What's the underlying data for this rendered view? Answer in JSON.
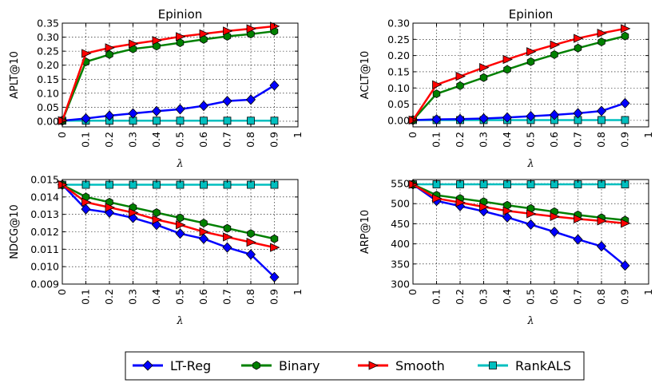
{
  "colors": {
    "lt_reg": "#0000ff",
    "binary": "#008000",
    "smooth": "#ff0000",
    "rankals": "#00bfbf",
    "grid": "#000000"
  },
  "legend": {
    "items": [
      {
        "label": "LT-Reg",
        "marker": "diamond",
        "color": "#0000ff"
      },
      {
        "label": "Binary",
        "marker": "hexagon",
        "color": "#008000"
      },
      {
        "label": "Smooth",
        "marker": "triangle-right",
        "color": "#ff0000"
      },
      {
        "label": "RankALS",
        "marker": "square",
        "color": "#00bfbf"
      }
    ]
  },
  "chart_data": [
    {
      "type": "line",
      "title": "Epinion",
      "xlabel": "λ",
      "ylabel": "APLT@10",
      "x": [
        0,
        0.1,
        0.2,
        0.3,
        0.4,
        0.5,
        0.6,
        0.7,
        0.8,
        0.9
      ],
      "xlim": [
        0,
        1
      ],
      "xticks": [
        "0",
        "0.1",
        "0.2",
        "0.3",
        "0.4",
        "0.5",
        "0.6",
        "0.7",
        "0.8",
        "0.9",
        "1"
      ],
      "ylim": [
        -0.02,
        0.35
      ],
      "yticks": [
        0,
        0.05,
        0.1,
        0.15,
        0.2,
        0.25,
        0.3,
        0.35
      ],
      "yticklabels": [
        "0.00",
        "0.05",
        "0.10",
        "0.15",
        "0.20",
        "0.25",
        "0.30",
        "0.35"
      ],
      "grid": true,
      "series": [
        {
          "name": "LT-Reg",
          "values": [
            0.002,
            0.01,
            0.02,
            0.028,
            0.036,
            0.043,
            0.055,
            0.072,
            0.077,
            0.128
          ]
        },
        {
          "name": "Binary",
          "values": [
            0.002,
            0.212,
            0.238,
            0.258,
            0.268,
            0.28,
            0.292,
            0.303,
            0.311,
            0.321
          ]
        },
        {
          "name": "Smooth",
          "values": [
            0.002,
            0.242,
            0.262,
            0.276,
            0.288,
            0.302,
            0.312,
            0.322,
            0.33,
            0.339
          ]
        },
        {
          "name": "RankALS",
          "values": [
            0.002,
            0.002,
            0.002,
            0.002,
            0.002,
            0.002,
            0.002,
            0.002,
            0.002,
            0.002
          ]
        }
      ]
    },
    {
      "type": "line",
      "title": "Epinion",
      "xlabel": "λ",
      "ylabel": "ACLT@10",
      "x": [
        0,
        0.1,
        0.2,
        0.3,
        0.4,
        0.5,
        0.6,
        0.7,
        0.8,
        0.9
      ],
      "xlim": [
        0,
        1
      ],
      "xticks": [
        "0",
        "0.1",
        "0.2",
        "0.3",
        "0.4",
        "0.5",
        "0.6",
        "0.7",
        "0.8",
        "0.9",
        "1"
      ],
      "ylim": [
        -0.02,
        0.3
      ],
      "yticks": [
        0,
        0.05,
        0.1,
        0.15,
        0.2,
        0.25,
        0.3
      ],
      "yticklabels": [
        "0.00",
        "0.05",
        "0.10",
        "0.15",
        "0.20",
        "0.25",
        "0.30"
      ],
      "grid": true,
      "series": [
        {
          "name": "LT-Reg",
          "values": [
            0.001,
            0.003,
            0.004,
            0.006,
            0.009,
            0.013,
            0.017,
            0.022,
            0.029,
            0.053
          ]
        },
        {
          "name": "Binary",
          "values": [
            0.001,
            0.082,
            0.107,
            0.132,
            0.157,
            0.181,
            0.203,
            0.223,
            0.242,
            0.26
          ]
        },
        {
          "name": "Smooth",
          "values": [
            0.001,
            0.11,
            0.136,
            0.163,
            0.188,
            0.212,
            0.233,
            0.253,
            0.269,
            0.283
          ]
        },
        {
          "name": "RankALS",
          "values": [
            0.001,
            0.001,
            0.001,
            0.001,
            0.001,
            0.001,
            0.001,
            0.001,
            0.001,
            0.001
          ]
        }
      ]
    },
    {
      "type": "line",
      "title": "",
      "xlabel": "λ",
      "ylabel": "NDCG@10",
      "x": [
        0,
        0.1,
        0.2,
        0.3,
        0.4,
        0.5,
        0.6,
        0.7,
        0.8,
        0.9
      ],
      "xlim": [
        0,
        1
      ],
      "xticks": [
        "0",
        "0.1",
        "0.2",
        "0.3",
        "0.4",
        "0.5",
        "0.6",
        "0.7",
        "0.8",
        "0.9",
        "1"
      ],
      "ylim": [
        0.009,
        0.015
      ],
      "yticks": [
        0.009,
        0.01,
        0.011,
        0.012,
        0.013,
        0.014,
        0.015
      ],
      "yticklabels": [
        "0.009",
        "0.010",
        "0.011",
        "0.012",
        "0.013",
        "0.014",
        "0.015"
      ],
      "grid": true,
      "series": [
        {
          "name": "LT-Reg",
          "values": [
            0.0147,
            0.0133,
            0.0131,
            0.0128,
            0.0124,
            0.0119,
            0.0116,
            0.0111,
            0.0107,
            0.0094
          ]
        },
        {
          "name": "Binary",
          "values": [
            0.0147,
            0.014,
            0.0137,
            0.0134,
            0.0131,
            0.0128,
            0.0125,
            0.0122,
            0.0119,
            0.0116
          ]
        },
        {
          "name": "Smooth",
          "values": [
            0.0147,
            0.0137,
            0.0134,
            0.0131,
            0.0127,
            0.0124,
            0.012,
            0.0117,
            0.0114,
            0.0111
          ]
        },
        {
          "name": "RankALS",
          "values": [
            0.0147,
            0.0147,
            0.0147,
            0.0147,
            0.0147,
            0.0147,
            0.0147,
            0.0147,
            0.0147,
            0.0147
          ]
        }
      ]
    },
    {
      "type": "line",
      "title": "",
      "xlabel": "λ",
      "ylabel": "ARP@10",
      "x": [
        0,
        0.1,
        0.2,
        0.3,
        0.4,
        0.5,
        0.6,
        0.7,
        0.8,
        0.9
      ],
      "xlim": [
        0,
        1
      ],
      "xticks": [
        "0",
        "0.1",
        "0.2",
        "0.3",
        "0.4",
        "0.5",
        "0.6",
        "0.7",
        "0.8",
        "0.9",
        "1"
      ],
      "ylim": [
        300,
        560
      ],
      "yticks": [
        300,
        350,
        400,
        450,
        500,
        550
      ],
      "yticklabels": [
        "300",
        "350",
        "400",
        "450",
        "500",
        "550"
      ],
      "grid": true,
      "series": [
        {
          "name": "LT-Reg",
          "values": [
            548,
            507,
            494,
            481,
            466,
            448,
            430,
            411,
            394,
            346
          ]
        },
        {
          "name": "Binary",
          "values": [
            548,
            521,
            513,
            505,
            496,
            488,
            480,
            472,
            465,
            459
          ]
        },
        {
          "name": "Smooth",
          "values": [
            548,
            513,
            503,
            492,
            482,
            475,
            468,
            462,
            457,
            451
          ]
        },
        {
          "name": "RankALS",
          "values": [
            548,
            548,
            548,
            548,
            548,
            548,
            548,
            548,
            548,
            548
          ]
        }
      ]
    }
  ]
}
